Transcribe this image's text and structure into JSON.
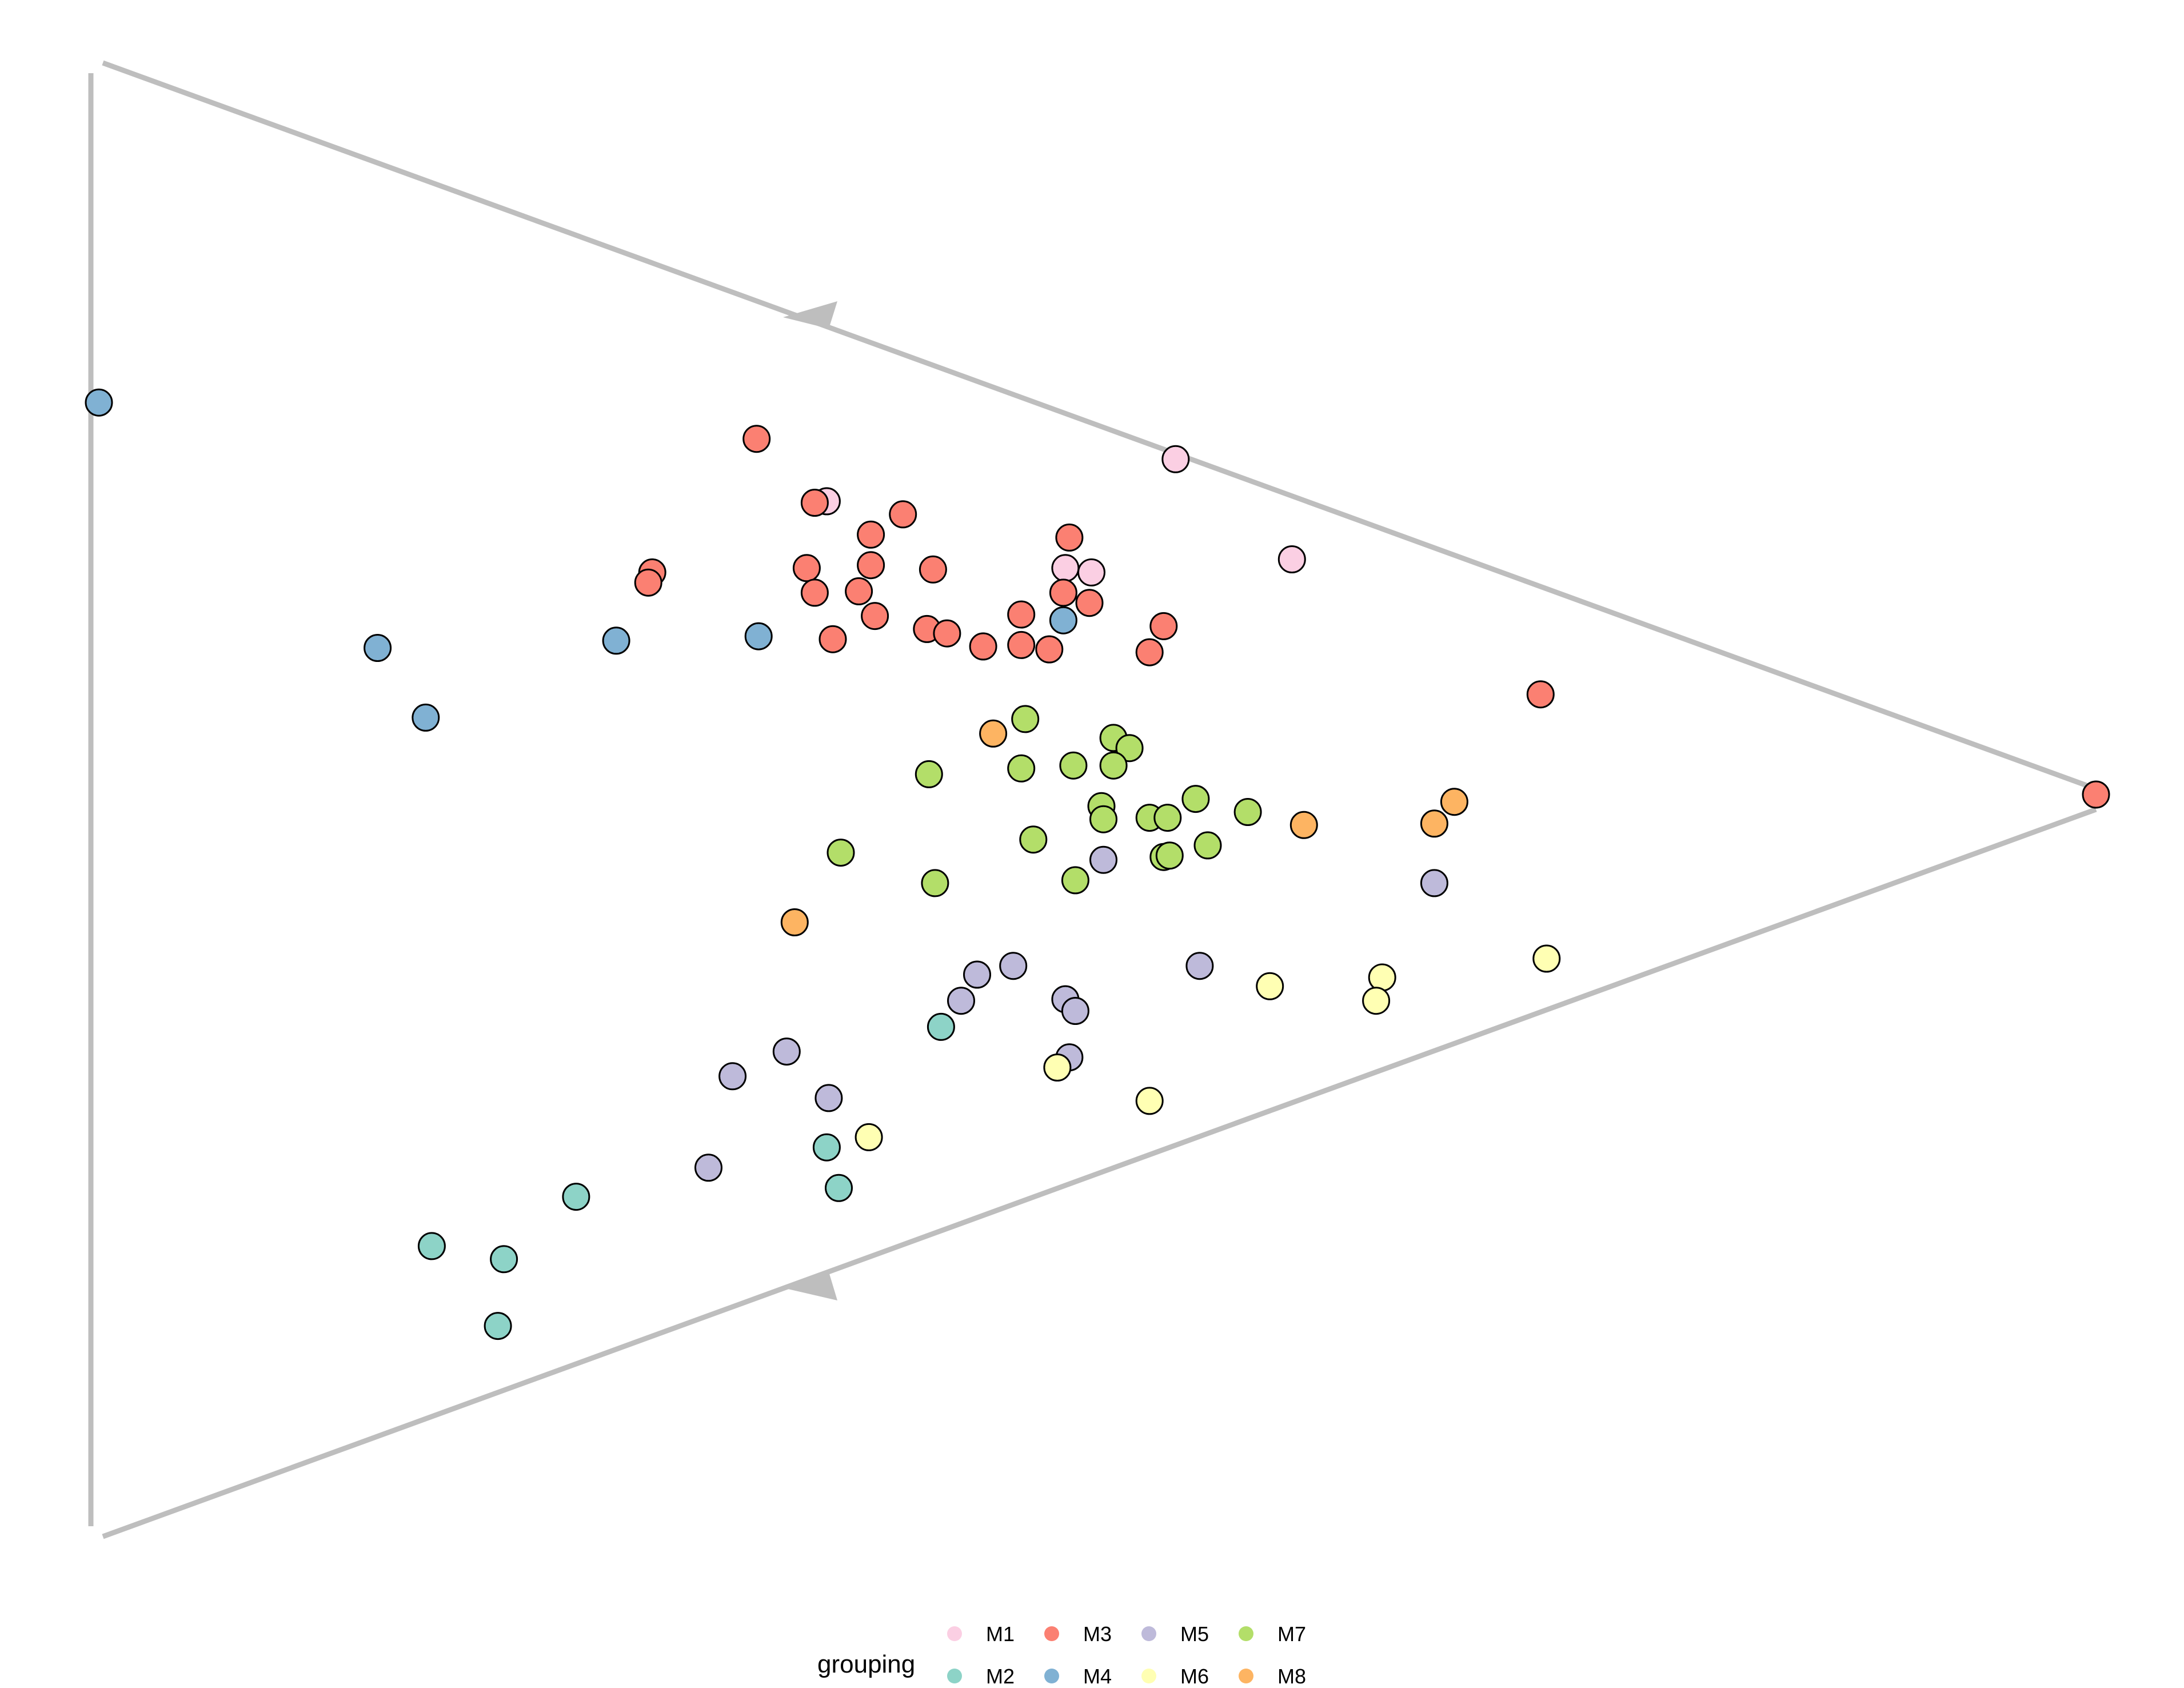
{
  "chart_data": {
    "type": "scatter",
    "plot": "ternary",
    "x_units": "horizontal position on the plot, fraction of the triangle width (0 at the left edge, 1 at the right apex)",
    "y_units": "vertical position on the plot, fraction of the triangle height (0 at the bottom edge, 1 at the top edge)",
    "axes": [
      {
        "name": "",
        "from": "bottom-left vertex",
        "to": "top-left vertex",
        "arrow": false
      },
      {
        "name": "",
        "from": "right apex",
        "to": "top-left vertex",
        "arrow": true
      },
      {
        "name": "",
        "from": "right apex",
        "to": "bottom-left vertex",
        "arrow": true
      }
    ],
    "edge_color": "#bebebe",
    "point_outline": "#000000",
    "legend": {
      "title": "grouping",
      "position": "bottom"
    },
    "series": [
      {
        "name": "M1",
        "color": "#fbcfe3",
        "points": [
          [
            0.367,
            0.702
          ],
          [
            0.541,
            0.731
          ],
          [
            0.486,
            0.656
          ],
          [
            0.499,
            0.653
          ],
          [
            0.599,
            0.662
          ]
        ]
      },
      {
        "name": "M2",
        "color": "#8dd3c7",
        "points": [
          [
            0.424,
            0.34
          ],
          [
            0.367,
            0.257
          ],
          [
            0.373,
            0.229
          ],
          [
            0.242,
            0.223
          ],
          [
            0.17,
            0.189
          ],
          [
            0.206,
            0.18
          ],
          [
            0.203,
            0.134
          ]
        ]
      },
      {
        "name": "M3",
        "color": "#fb8072",
        "points": [
          [
            0.332,
            0.745
          ],
          [
            0.361,
            0.701
          ],
          [
            0.405,
            0.693
          ],
          [
            0.389,
            0.679
          ],
          [
            0.28,
            0.653
          ],
          [
            0.278,
            0.646
          ],
          [
            0.357,
            0.656
          ],
          [
            0.389,
            0.658
          ],
          [
            0.42,
            0.655
          ],
          [
            0.383,
            0.64
          ],
          [
            0.361,
            0.639
          ],
          [
            0.391,
            0.623
          ],
          [
            0.37,
            0.607
          ],
          [
            0.417,
            0.614
          ],
          [
            0.488,
            0.677
          ],
          [
            0.485,
            0.639
          ],
          [
            0.498,
            0.632
          ],
          [
            0.464,
            0.624
          ],
          [
            0.535,
            0.616
          ],
          [
            0.427,
            0.611
          ],
          [
            0.445,
            0.602
          ],
          [
            0.464,
            0.603
          ],
          [
            0.478,
            0.6
          ],
          [
            0.528,
            0.598
          ],
          [
            0.723,
            0.569
          ],
          [
            1.0,
            0.5
          ]
        ]
      },
      {
        "name": "M4",
        "color": "#80b1d3",
        "points": [
          [
            0.004,
            0.77
          ],
          [
            0.143,
            0.601
          ],
          [
            0.167,
            0.553
          ],
          [
            0.262,
            0.606
          ],
          [
            0.333,
            0.609
          ],
          [
            0.485,
            0.62
          ]
        ]
      },
      {
        "name": "M5",
        "color": "#bebada",
        "points": [
          [
            0.505,
            0.455
          ],
          [
            0.67,
            0.439
          ],
          [
            0.553,
            0.382
          ],
          [
            0.46,
            0.382
          ],
          [
            0.442,
            0.376
          ],
          [
            0.434,
            0.358
          ],
          [
            0.486,
            0.359
          ],
          [
            0.491,
            0.351
          ],
          [
            0.32,
            0.306
          ],
          [
            0.347,
            0.323
          ],
          [
            0.368,
            0.291
          ],
          [
            0.488,
            0.319
          ],
          [
            0.308,
            0.243
          ]
        ]
      },
      {
        "name": "M6",
        "color": "#ffffb3",
        "points": [
          [
            0.726,
            0.387
          ],
          [
            0.644,
            0.374
          ],
          [
            0.588,
            0.368
          ],
          [
            0.641,
            0.358
          ],
          [
            0.482,
            0.312
          ],
          [
            0.528,
            0.289
          ],
          [
            0.388,
            0.264
          ]
        ]
      },
      {
        "name": "M7",
        "color": "#b3de69",
        "points": [
          [
            0.466,
            0.552
          ],
          [
            0.51,
            0.539
          ],
          [
            0.518,
            0.532
          ],
          [
            0.418,
            0.514
          ],
          [
            0.464,
            0.518
          ],
          [
            0.49,
            0.52
          ],
          [
            0.51,
            0.52
          ],
          [
            0.504,
            0.492
          ],
          [
            0.505,
            0.483
          ],
          [
            0.528,
            0.484
          ],
          [
            0.537,
            0.484
          ],
          [
            0.551,
            0.497
          ],
          [
            0.577,
            0.488
          ],
          [
            0.47,
            0.469
          ],
          [
            0.557,
            0.465
          ],
          [
            0.374,
            0.46
          ],
          [
            0.535,
            0.457
          ],
          [
            0.538,
            0.458
          ],
          [
            0.421,
            0.439
          ],
          [
            0.491,
            0.441
          ]
        ]
      },
      {
        "name": "M8",
        "color": "#fdb462",
        "points": [
          [
            0.45,
            0.542
          ],
          [
            0.605,
            0.479
          ],
          [
            0.67,
            0.48
          ],
          [
            0.68,
            0.495
          ],
          [
            0.351,
            0.412
          ]
        ]
      }
    ]
  }
}
